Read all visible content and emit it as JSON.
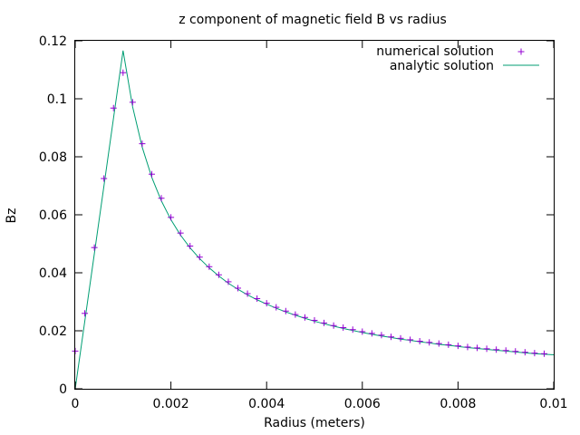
{
  "chart_data": {
    "type": "scatter",
    "title": "z component of magnetic field B vs radius",
    "xlabel": "Radius (meters)",
    "ylabel": "Bz",
    "xlim": [
      0,
      0.01
    ],
    "ylim": [
      0,
      0.12
    ],
    "x_ticks": [
      "0",
      "0.002",
      "0.004",
      "0.006",
      "0.008",
      "0.01"
    ],
    "y_ticks": [
      "0",
      "0.02",
      "0.04",
      "0.06",
      "0.08",
      "0.1",
      "0.12"
    ],
    "grid": false,
    "legend_position": "top-right",
    "series": [
      {
        "name": "numerical solution",
        "style": "points",
        "marker": "plus",
        "color": "#9400d3",
        "x": [
          0.0,
          0.0002,
          0.0004,
          0.0006,
          0.0008,
          0.001,
          0.0012,
          0.0014,
          0.0016,
          0.0018,
          0.002,
          0.0022,
          0.0024,
          0.0026,
          0.0028,
          0.003,
          0.0032,
          0.0034,
          0.0036,
          0.0038,
          0.004,
          0.0042,
          0.0044,
          0.0046,
          0.0048,
          0.005,
          0.0052,
          0.0054,
          0.0056,
          0.0058,
          0.006,
          0.0062,
          0.0064,
          0.0066,
          0.0068,
          0.007,
          0.0072,
          0.0074,
          0.0076,
          0.0078,
          0.008,
          0.0082,
          0.0084,
          0.0086,
          0.0088,
          0.009,
          0.0092,
          0.0094,
          0.0096,
          0.0098
        ],
        "y": [
          0.013,
          0.026,
          0.0487,
          0.0725,
          0.0968,
          0.109,
          0.0988,
          0.0845,
          0.074,
          0.0657,
          0.0591,
          0.0537,
          0.0492,
          0.0454,
          0.0421,
          0.0393,
          0.0369,
          0.0347,
          0.0328,
          0.0311,
          0.0295,
          0.0281,
          0.0268,
          0.0256,
          0.0246,
          0.0236,
          0.0227,
          0.0218,
          0.0211,
          0.0204,
          0.0197,
          0.0191,
          0.0185,
          0.0179,
          0.0174,
          0.0169,
          0.0164,
          0.016,
          0.0156,
          0.0152,
          0.0148,
          0.0144,
          0.0141,
          0.0138,
          0.0135,
          0.0132,
          0.0129,
          0.0126,
          0.0123,
          0.0121
        ]
      },
      {
        "name": "analytic solution",
        "style": "line",
        "color": "#009e73",
        "x": [
          0.0,
          0.0002,
          0.0004,
          0.0006,
          0.0008,
          0.001,
          0.0012,
          0.0014,
          0.0016,
          0.0018,
          0.002,
          0.0022,
          0.0024,
          0.0026,
          0.0028,
          0.003,
          0.0032,
          0.0034,
          0.0036,
          0.0038,
          0.004,
          0.0042,
          0.0044,
          0.0046,
          0.0048,
          0.005,
          0.0052,
          0.0054,
          0.0056,
          0.0058,
          0.006,
          0.0062,
          0.0064,
          0.0066,
          0.0068,
          0.007,
          0.0072,
          0.0074,
          0.0076,
          0.0078,
          0.008,
          0.0082,
          0.0084,
          0.0086,
          0.0088,
          0.009,
          0.0092,
          0.0094,
          0.0096,
          0.0098,
          0.01
        ],
        "y": [
          0.0,
          0.0233,
          0.0466,
          0.0699,
          0.0933,
          0.1166,
          0.0972,
          0.0833,
          0.0729,
          0.0648,
          0.0583,
          0.053,
          0.0486,
          0.0449,
          0.0417,
          0.0389,
          0.0364,
          0.0343,
          0.0324,
          0.0307,
          0.0292,
          0.0278,
          0.0265,
          0.0254,
          0.0243,
          0.0233,
          0.0224,
          0.0216,
          0.0208,
          0.0201,
          0.0194,
          0.0188,
          0.0182,
          0.0177,
          0.0171,
          0.0167,
          0.0162,
          0.0158,
          0.0153,
          0.015,
          0.0146,
          0.0142,
          0.0139,
          0.0136,
          0.0133,
          0.013,
          0.0127,
          0.0124,
          0.0121,
          0.0119,
          0.0117
        ]
      }
    ]
  }
}
